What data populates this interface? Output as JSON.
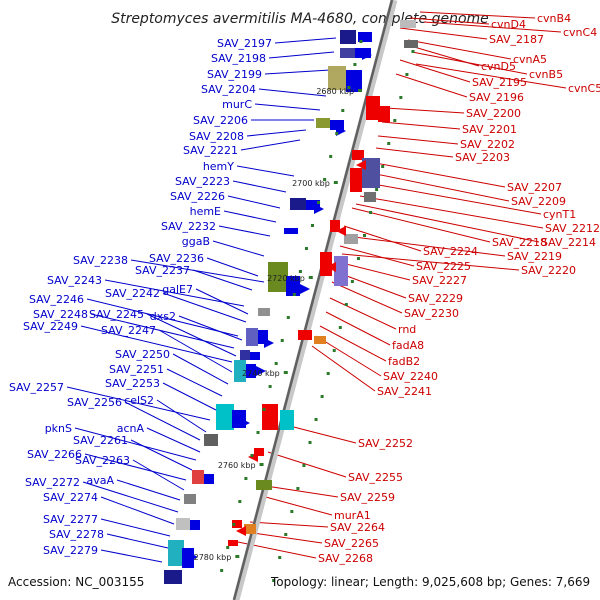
{
  "title": "Streptomyces avermitilis MA-4680, complete genome",
  "footer": {
    "accession": "Accession: NC_003155",
    "summary": "Topology: linear; Length: 9,025,608 bp; Genes: 7,669"
  },
  "colors": {
    "forward": "#0000e0",
    "reverse": "#ee0000",
    "label_forward": "#0000cc",
    "label_reverse": "#cc0000"
  },
  "ticks": [
    {
      "label": "2680 kbp",
      "kbp": 2680
    },
    {
      "label": "2700 kbp",
      "kbp": 2700
    },
    {
      "label": "2720 kbp",
      "kbp": 2720
    },
    {
      "label": "2740 kbp",
      "kbp": 2740
    },
    {
      "label": "2760 kbp",
      "kbp": 2760
    },
    {
      "label": "2780 kbp",
      "kbp": 2780
    }
  ],
  "left_labels": [
    "SAV_2197",
    "SAV_2198",
    "SAV_2199",
    "SAV_2204",
    "murC",
    "SAV_2206",
    "SAV_2208",
    "SAV_2221",
    "hemY",
    "SAV_2223",
    "SAV_2226",
    "hemE",
    "SAV_2232",
    "ggaB",
    "SAV_2236",
    "SAV_2238",
    "SAV_2237",
    "SAV_2243",
    "galE7",
    "SAV_2242",
    "SAV_2246",
    "dxs2",
    "SAV_2248",
    "SAV_2245",
    "SAV_2249",
    "SAV_2247",
    "SAV_2250",
    "SAV_2251",
    "SAV_2253",
    "SAV_2257",
    "celS2",
    "SAV_2256",
    "acnA",
    "pknS",
    "SAV_2261",
    "SAV_2266",
    "SAV_2263",
    "avaA",
    "SAV_2272",
    "SAV_2274",
    "SAV_2277",
    "SAV_2278",
    "SAV_2279"
  ],
  "right_labels": [
    "cvnB4",
    "cvnD4",
    "cvnC4",
    "SAV_2187",
    "cvnD5",
    "cvnA5",
    "cvnB5",
    "SAV_2195",
    "cvnC5",
    "SAV_2196",
    "SAV_2200",
    "SAV_2201",
    "SAV_2202",
    "SAV_2203",
    "SAV_2207",
    "SAV_2209",
    "cynT1",
    "SAV_2212",
    "SAV_2218",
    "SAV_2214",
    "SAV_2224",
    "SAV_2219",
    "SAV_2225",
    "SAV_2220",
    "SAV_2227",
    "SAV_2229",
    "SAV_2230",
    "rnd",
    "fadA8",
    "fadB2",
    "SAV_2240",
    "SAV_2241",
    "SAV_2252",
    "SAV_2255",
    "SAV_2259",
    "murA1",
    "SAV_2264",
    "SAV_2265",
    "SAV_2268"
  ]
}
